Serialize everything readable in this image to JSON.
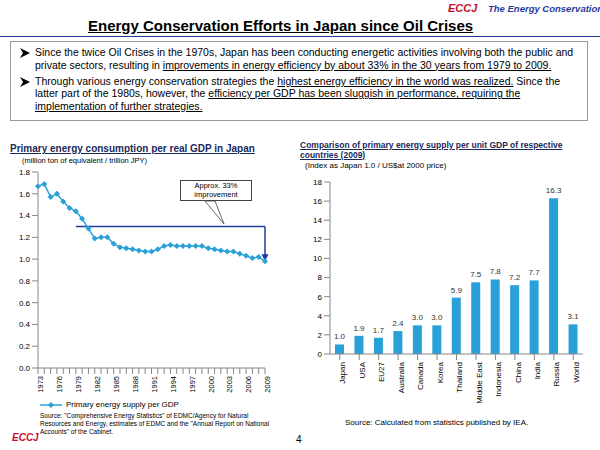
{
  "header": {
    "logo": "ECCJ",
    "organization": "The Energy Conservation Center Japan",
    "title": "Energy Conservation Efforts in Japan since Oil Crises"
  },
  "bullets": [
    [
      {
        "text": "Since the twice Oil Crises in the 1970s, Japan has been conducting energetic activities involving both the public and private sectors, resulting in ",
        "underline": false
      },
      {
        "text": "improvements in energy efficiency by about 33% in the 30 years from 1979 to 2009.",
        "underline": true
      }
    ],
    [
      {
        "text": "Through various energy conservation strategies the ",
        "underline": false
      },
      {
        "text": "highest energy efficiency in the world was realized.",
        "underline": true
      },
      {
        "text": " Since the latter part of the 1980s, however, the ",
        "underline": false
      },
      {
        "text": "efficiency per GDP has been sluggish in performance, requiring the implementation of further strategies.",
        "underline": true
      }
    ]
  ],
  "page_number": "4",
  "footer_logo": "ECCJ",
  "chart_data": [
    {
      "type": "line",
      "title": "Primary energy consumption per real GDP in Japan",
      "subtitle": "(million ton of equivalent / trillion JPY)",
      "source": "Source: \"Comprehensive Energy Statistics\" of EDMC/Agency for Natural Resources and Energy, estimates of EDMC and the \"Annual Report on National Accounts\" of the Cabinet.",
      "categories": [
        "1973",
        null,
        null,
        "1976",
        null,
        null,
        "1979",
        null,
        null,
        "1982",
        null,
        null,
        "1985",
        null,
        null,
        "1988",
        null,
        null,
        "1991",
        null,
        null,
        "1994",
        null,
        null,
        "1997",
        null,
        null,
        "2000",
        null,
        null,
        "2003",
        null,
        null,
        "2006",
        null,
        null,
        "2009"
      ],
      "series": [
        {
          "name": "Primary energy supply per GDP",
          "color": "#2aa0d8",
          "marker": "diamond",
          "values": [
            1.67,
            1.69,
            1.57,
            1.6,
            1.53,
            1.47,
            1.44,
            1.37,
            1.28,
            1.19,
            1.2,
            1.2,
            1.14,
            1.11,
            1.1,
            1.09,
            1.08,
            1.07,
            1.07,
            1.09,
            1.12,
            1.13,
            1.12,
            1.12,
            1.12,
            1.12,
            1.12,
            1.1,
            1.09,
            1.08,
            1.07,
            1.07,
            1.05,
            1.03,
            1.01,
            1.02,
            0.98
          ]
        }
      ],
      "ylim": [
        0,
        1.8
      ],
      "yticks": [
        {
          "value": 0,
          "label": "0.0"
        },
        {
          "value": 0.2,
          "label": "0.2"
        },
        {
          "value": 0.4,
          "label": "0.4"
        },
        {
          "value": 0.6,
          "label": "0.6"
        },
        {
          "value": 0.8,
          "label": "0.8"
        },
        {
          "value": 1,
          "label": "1.0"
        },
        {
          "value": 1.2,
          "label": "1.2"
        },
        {
          "value": 1.4,
          "label": "1.4"
        },
        {
          "value": 1.6,
          "label": "1.6"
        },
        {
          "value": 1.8,
          "label": "1.8"
        }
      ],
      "grid": false,
      "legend": "bottom",
      "annotation": {
        "text": "Approx. 33% improvement",
        "from": "1979",
        "to": "2009",
        "level": 1.3
      }
    },
    {
      "type": "bar",
      "title": "Comparison of primary energy supply per unit GDP of respective countries (2009)",
      "subtitle": "(Index as Japan 1.0 / US$at 2000 price)",
      "source": "Source: Calculated from statistics published by IEA.",
      "categories": [
        "Japan",
        "USA",
        "EU27",
        "Australia",
        "Canada",
        "Korea",
        "Thailand",
        "Middle East",
        "Indonesia",
        "China",
        "India",
        "Russia",
        "World"
      ],
      "values": [
        1.0,
        1.9,
        1.7,
        2.4,
        3.0,
        3.0,
        5.9,
        7.5,
        7.8,
        7.2,
        7.7,
        16.3,
        3.1
      ],
      "value_labels": [
        "1.0",
        "1.9",
        "1.7",
        "2.4",
        "3.0",
        "3.0",
        "5.9",
        "7.5",
        "7.8",
        "7.2",
        "7.7",
        "16.3",
        "3.1"
      ],
      "color": "#2aa0d8",
      "data_labels": true,
      "ylim": [
        0,
        18
      ],
      "yticks": [
        0,
        2,
        4,
        6,
        8,
        10,
        12,
        14,
        16,
        18
      ],
      "grid": false
    }
  ]
}
